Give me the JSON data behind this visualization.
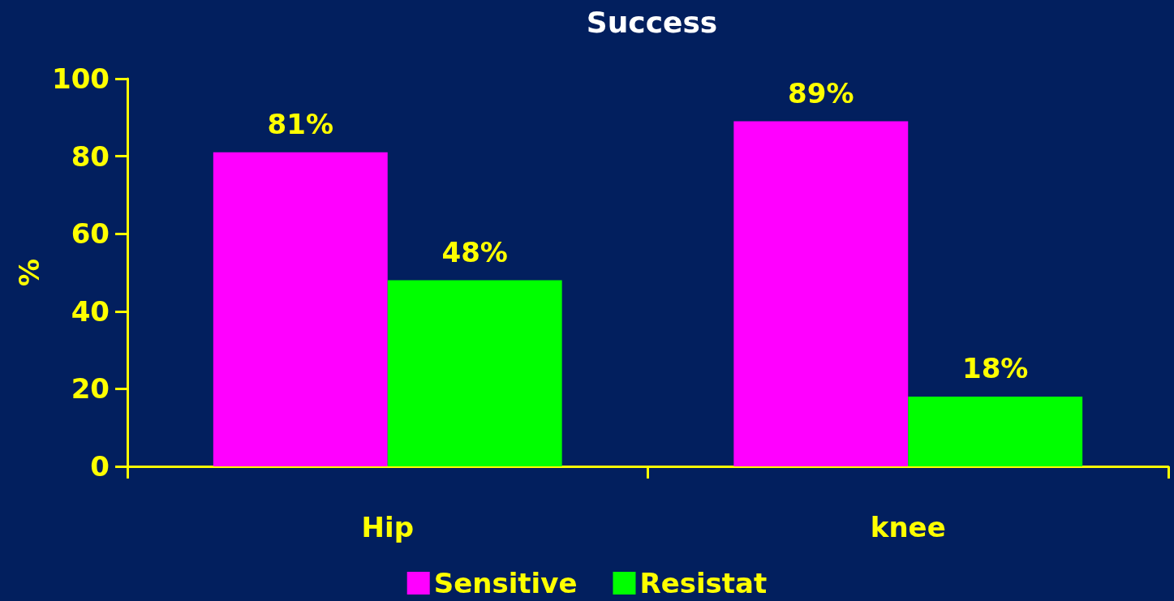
{
  "chart_data": {
    "type": "bar",
    "title": "Success",
    "ylabel": "%",
    "categories": [
      "Hip",
      "knee"
    ],
    "series": [
      {
        "name": "Sensitive",
        "color": "#ff00ff",
        "values": [
          81,
          89
        ],
        "value_labels": [
          "81%",
          "89%"
        ]
      },
      {
        "name": "Resistat",
        "color": "#00ff00",
        "values": [
          48,
          18
        ],
        "value_labels": [
          "48%",
          "18%"
        ]
      }
    ],
    "ylim": [
      0,
      100
    ],
    "yticks": [
      0,
      20,
      40,
      60,
      80,
      100
    ],
    "grid": false,
    "legend": "bottom"
  }
}
